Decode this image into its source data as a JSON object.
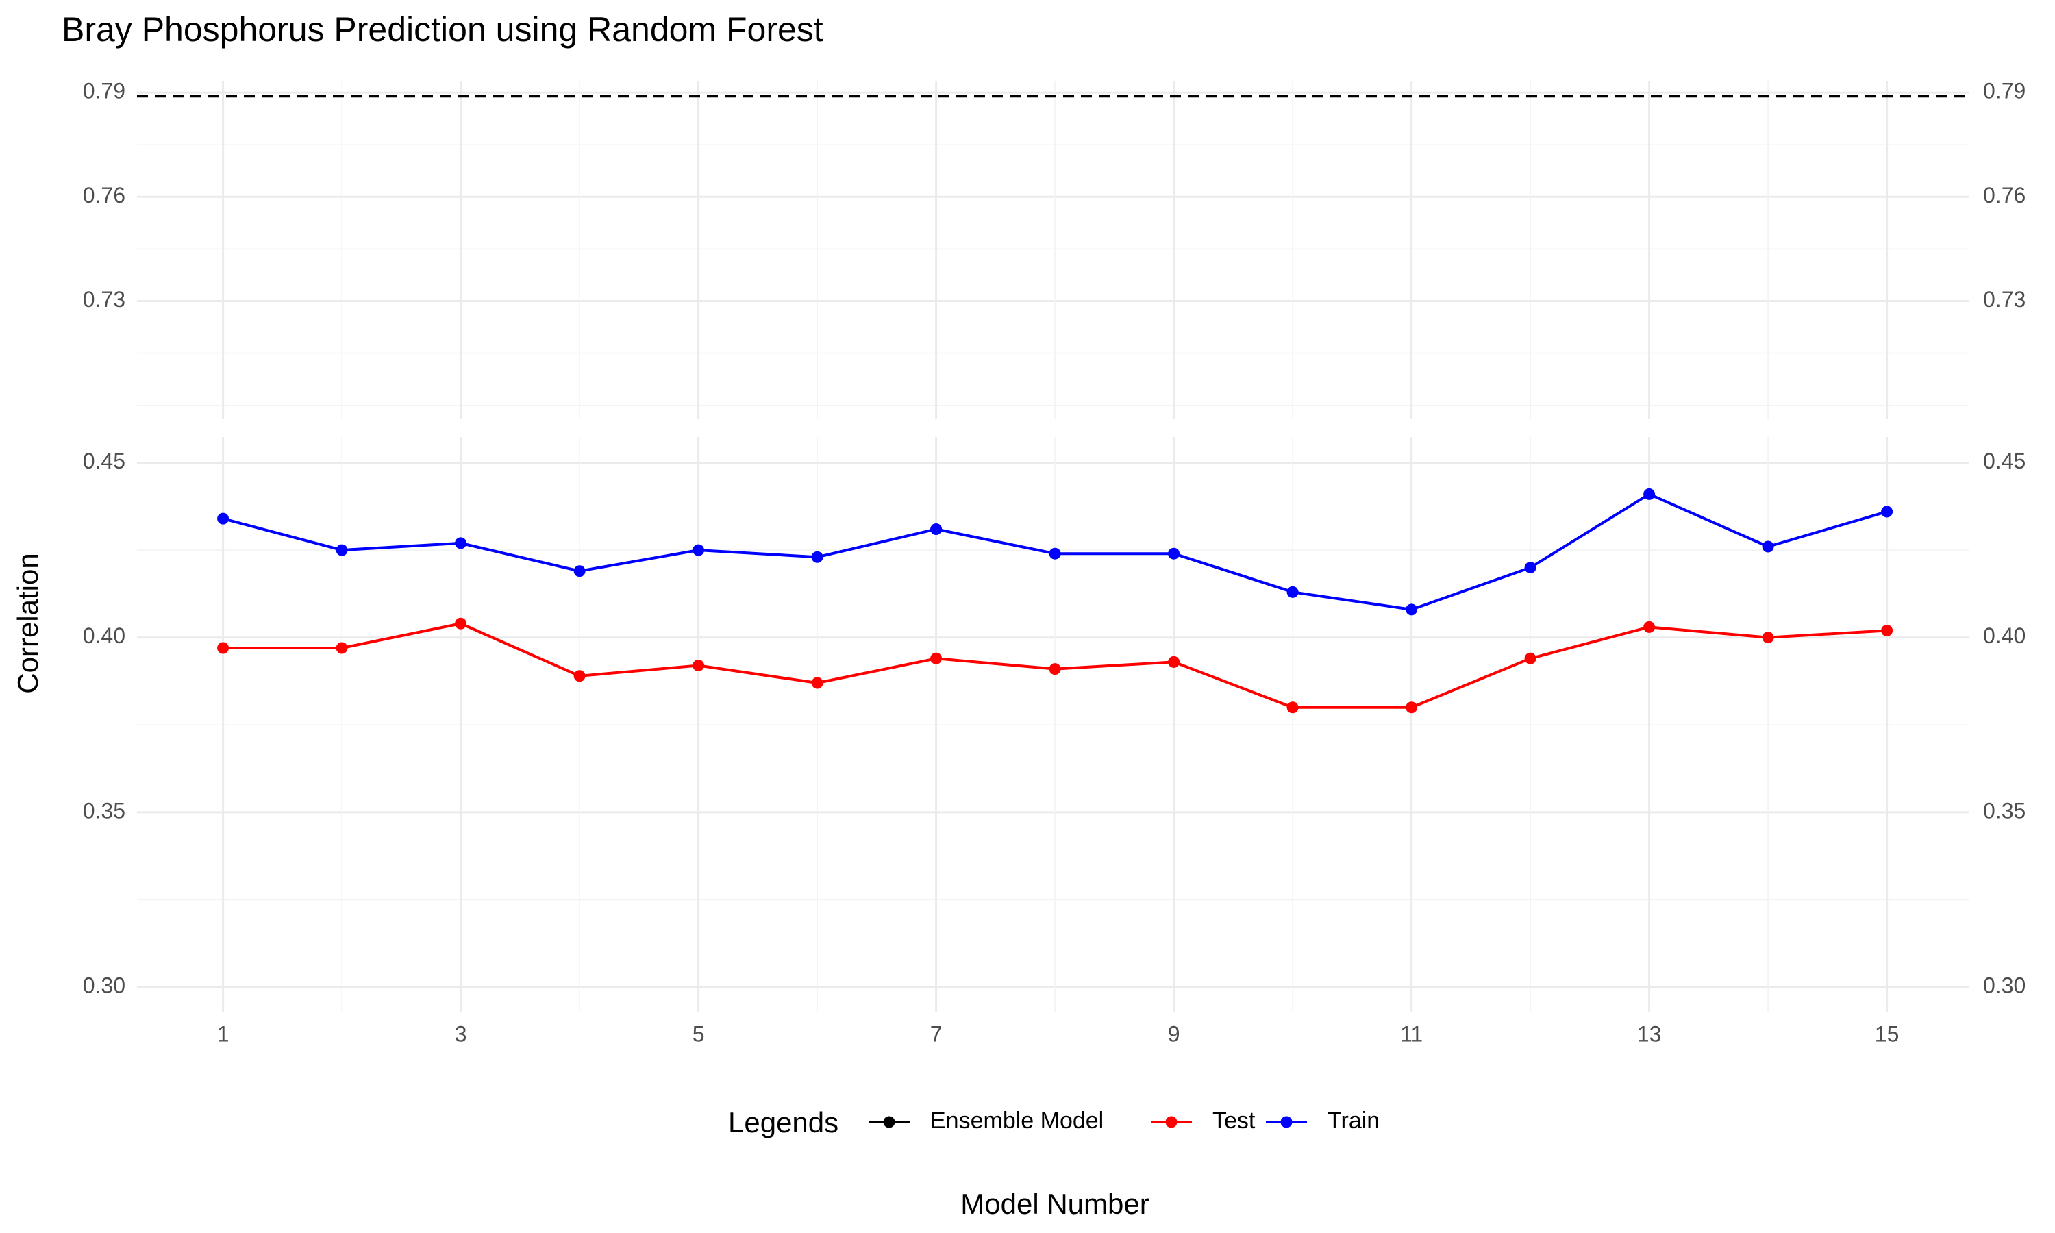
{
  "chart_data": {
    "type": "line",
    "title": "Bray Phosphorus Prediction using Random Forest",
    "xlabel": "Model Number",
    "ylabel": "Correlation",
    "x": [
      1,
      2,
      3,
      4,
      5,
      6,
      7,
      8,
      9,
      10,
      11,
      12,
      13,
      14,
      15
    ],
    "x_ticks": [
      "1",
      "3",
      "5",
      "7",
      "9",
      "11",
      "13",
      "15"
    ],
    "xlim": [
      0.3,
      15.7
    ],
    "series": [
      {
        "name": "Test",
        "color": "#ff0000",
        "values": [
          0.397,
          0.397,
          0.404,
          0.389,
          0.392,
          0.387,
          0.394,
          0.391,
          0.393,
          0.38,
          0.38,
          0.394,
          0.403,
          0.4,
          0.402
        ]
      },
      {
        "name": "Train",
        "color": "#0000ff",
        "values": [
          0.434,
          0.425,
          0.427,
          0.419,
          0.425,
          0.423,
          0.431,
          0.424,
          0.424,
          0.413,
          0.408,
          0.42,
          0.441,
          0.426,
          0.436
        ]
      }
    ],
    "reference_lines": [
      {
        "name": "Ensemble Model",
        "value": 0.789,
        "style": "dashed",
        "color": "#000000"
      }
    ],
    "axis_break": true,
    "upper_panel": {
      "ylim": [
        0.7,
        0.79
      ],
      "y_ticks": [
        "0.73",
        "0.76",
        "0.79"
      ],
      "y_tick_values": [
        0.73,
        0.76,
        0.79
      ]
    },
    "lower_panel": {
      "ylim": [
        0.3,
        0.45
      ],
      "y_ticks": [
        "0.30",
        "0.35",
        "0.40",
        "0.45"
      ],
      "y_tick_values": [
        0.3,
        0.35,
        0.4,
        0.45
      ]
    },
    "secondary_y_axis": "duplicate",
    "legend": {
      "title": "Legends",
      "position": "bottom",
      "entries": [
        "Ensemble Model",
        "Test",
        "Train"
      ]
    },
    "grid": true
  }
}
